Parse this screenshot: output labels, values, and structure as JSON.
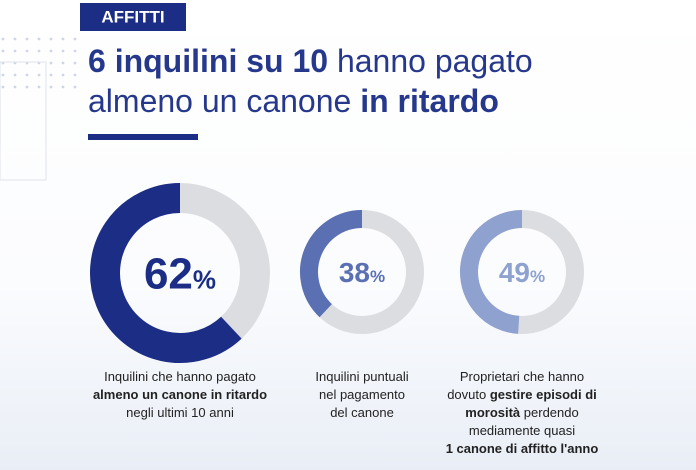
{
  "badge": "AFFITTI",
  "title": {
    "lines": [
      [
        {
          "text": "6 inquilini su 10",
          "bold": true
        },
        {
          "text": " hanno pagato",
          "bold": false
        }
      ],
      [
        {
          "text": "almeno un canone ",
          "bold": false
        },
        {
          "text": "in ritardo",
          "bold": true
        }
      ]
    ]
  },
  "chart_data": [
    {
      "type": "donut",
      "values": [
        62
      ],
      "unit": "%",
      "color": "#1b2d84",
      "caption": [
        [
          {
            "text": "Inquilini che hanno pagato",
            "bold": false
          }
        ],
        [
          {
            "text": "almeno un canone in ritardo",
            "bold": true
          }
        ],
        [
          {
            "text": "negli ultimi 10 anni",
            "bold": false
          }
        ]
      ]
    },
    {
      "type": "donut",
      "values": [
        38
      ],
      "unit": "%",
      "color": "#5a70b3",
      "caption": [
        [
          {
            "text": "Inquilini puntuali",
            "bold": false
          }
        ],
        [
          {
            "text": "nel pagamento",
            "bold": false
          }
        ],
        [
          {
            "text": "del canone",
            "bold": false
          }
        ]
      ]
    },
    {
      "type": "donut",
      "values": [
        49
      ],
      "unit": "%",
      "color": "#8ea1cf",
      "caption": [
        [
          {
            "text": "Proprietari che hanno",
            "bold": false
          }
        ],
        [
          {
            "text": "dovuto ",
            "bold": false
          },
          {
            "text": "gestire episodi di",
            "bold": true
          }
        ],
        [
          {
            "text": "morosità",
            "bold": true
          },
          {
            "text": " perdendo",
            "bold": false
          }
        ],
        [
          {
            "text": "mediamente quasi",
            "bold": false
          }
        ],
        [
          {
            "text": "1 canone di affitto l'anno",
            "bold": true
          }
        ]
      ]
    }
  ]
}
